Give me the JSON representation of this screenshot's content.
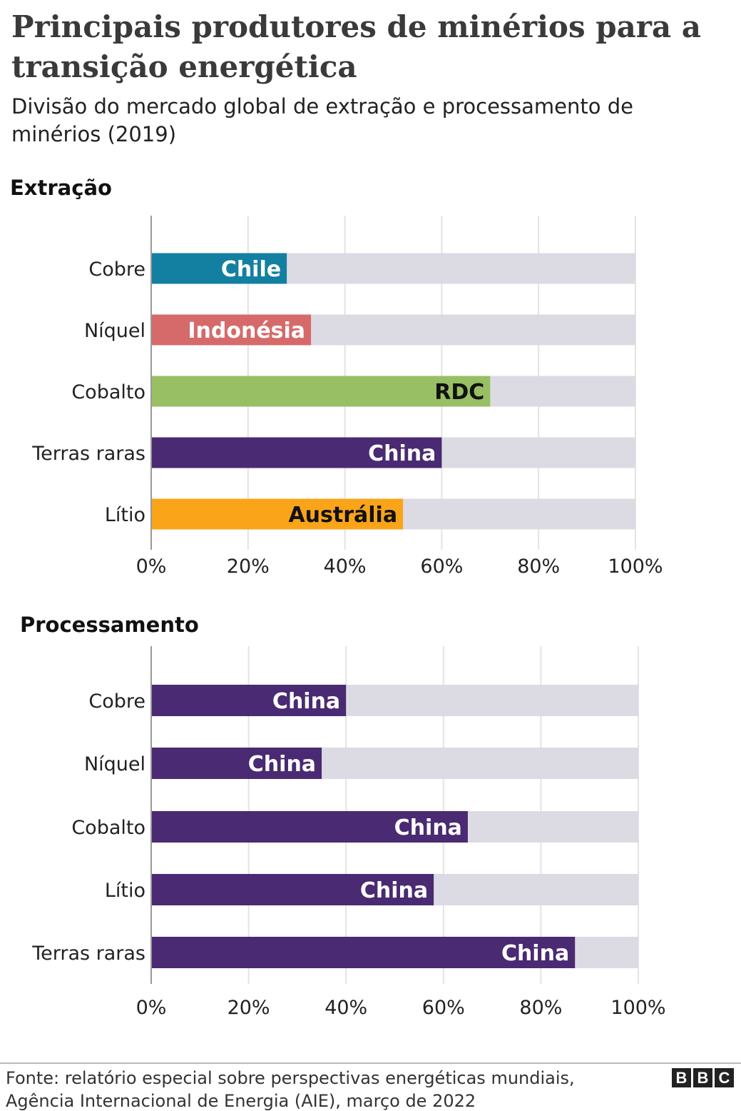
{
  "title": "Principais produtores de minérios para a transição energética",
  "subtitle": "Divisão do mercado global de extração e processamento de minérios (2019)",
  "source": "Fonte: relatório especial sobre perspectivas energéticas mundiais, Agência Internacional de Energia (AIE), março de 2022",
  "logo": "BBC",
  "colors": {
    "background_bar": "#DCDBE3",
    "grid": "#E3E3E3"
  },
  "chart_data": [
    {
      "type": "bar",
      "orientation": "horizontal",
      "title": "Extração",
      "categories": [
        "Cobre",
        "Níquel",
        "Cobalto",
        "Terras raras",
        "Lítio"
      ],
      "values": [
        28,
        33,
        70,
        60,
        52
      ],
      "labels": [
        "Chile",
        "Indonésia",
        "RDC",
        "China",
        "Austrália"
      ],
      "colors": [
        "#1380A1",
        "#D66A6A",
        "#98BF64",
        "#4A2A72",
        "#FAA41A"
      ],
      "label_colors": [
        "#FFFFFF",
        "#FFFFFF",
        "#111111",
        "#FFFFFF",
        "#111111"
      ],
      "xlim": [
        0,
        100
      ],
      "xticks": [
        "0%",
        "20%",
        "40%",
        "60%",
        "80%",
        "100%"
      ],
      "grid": true
    },
    {
      "type": "bar",
      "orientation": "horizontal",
      "title": "Processamento",
      "categories": [
        "Cobre",
        "Níquel",
        "Cobalto",
        "Lítio",
        "Terras raras"
      ],
      "values": [
        40,
        35,
        65,
        58,
        87
      ],
      "labels": [
        "China",
        "China",
        "China",
        "China",
        "China"
      ],
      "colors": [
        "#4A2A72",
        "#4A2A72",
        "#4A2A72",
        "#4A2A72",
        "#4A2A72"
      ],
      "label_colors": [
        "#FFFFFF",
        "#FFFFFF",
        "#FFFFFF",
        "#FFFFFF",
        "#FFFFFF"
      ],
      "xlim": [
        0,
        100
      ],
      "xticks": [
        "0%",
        "20%",
        "40%",
        "60%",
        "80%",
        "100%"
      ],
      "grid": true
    }
  ]
}
